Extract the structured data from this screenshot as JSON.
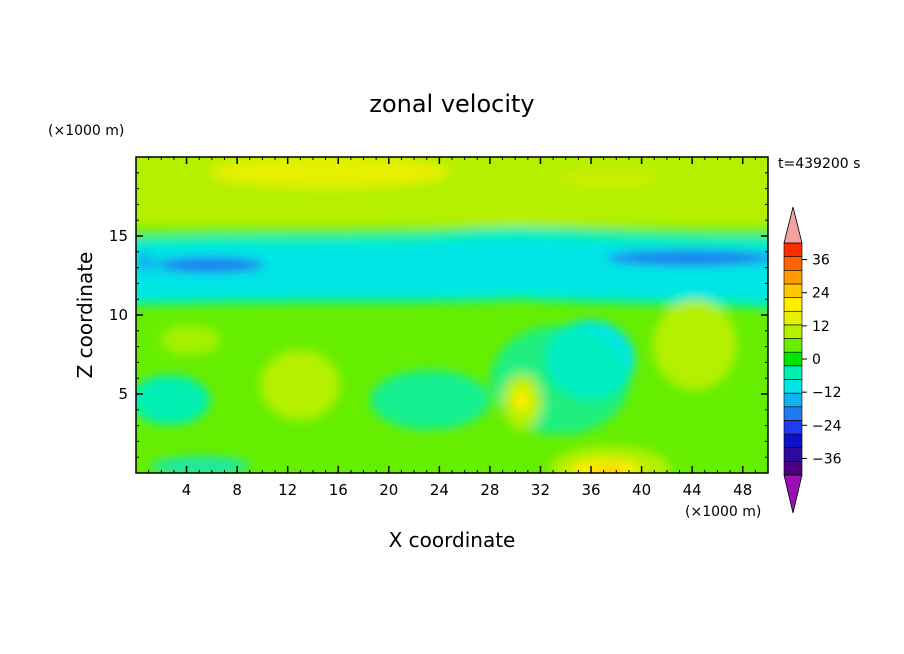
{
  "chart_data": {
    "type": "heatmap",
    "title": "zonal velocity",
    "xlabel": "X coordinate",
    "ylabel": "Z coordinate",
    "x_unit": "(×1000 m)",
    "y_unit": "(×1000 m)",
    "time_label": "t=439200 s",
    "xlim": [
      0,
      50
    ],
    "ylim": [
      0,
      20
    ],
    "x_ticks": [
      "4",
      "8",
      "12",
      "16",
      "20",
      "24",
      "28",
      "32",
      "36",
      "40",
      "44",
      "48"
    ],
    "y_ticks": [
      "5",
      "10",
      "15"
    ],
    "colorbar": {
      "tick_labels": [
        "36",
        "24",
        "12",
        "0",
        "−12",
        "−24",
        "−36"
      ],
      "tick_values": [
        36,
        24,
        12,
        0,
        -12,
        -24,
        -36
      ],
      "range": [
        -42,
        42
      ],
      "interval": 6,
      "colors_low_to_high": [
        "#4b0082",
        "#2b0b9a",
        "#1010c8",
        "#1f3cf0",
        "#1f7cf0",
        "#10b4f0",
        "#00e6e6",
        "#00f0b4",
        "#00e600",
        "#66ee00",
        "#b4f000",
        "#e6f000",
        "#ffee00",
        "#ffc800",
        "#ff9b00",
        "#ff6400",
        "#ff2d00"
      ],
      "under_color": "#9b10b4",
      "over_color": "#f4a0a0"
    },
    "field_regions": [
      {
        "desc": "upper band",
        "z_range": [
          16.5,
          20
        ],
        "value": 6
      },
      {
        "desc": "upper max near top",
        "x": [
          10,
          30
        ],
        "z": [
          18,
          20
        ],
        "value": 9
      },
      {
        "desc": "transition band",
        "z_range": [
          15,
          16
        ],
        "value": 3
      },
      {
        "desc": "negative core layer",
        "z_range": [
          10.5,
          14.5
        ],
        "value": -9
      },
      {
        "desc": "min left",
        "x": [
          0,
          10
        ],
        "z": [
          12.5,
          13.5
        ],
        "value": -15
      },
      {
        "desc": "min right",
        "x": [
          38,
          50
        ],
        "z": [
          13,
          14
        ],
        "value": -15
      },
      {
        "desc": "lower layer",
        "z_range": [
          0,
          10
        ],
        "value": 0
      },
      {
        "desc": "positive lobe 1",
        "x": [
          10,
          16
        ],
        "z": [
          3,
          7
        ],
        "value": 6
      },
      {
        "desc": "positive lobe 2",
        "x": [
          29,
          32
        ],
        "z": [
          3,
          6
        ],
        "value": 9
      },
      {
        "desc": "positive lobe 3",
        "x": [
          41,
          48
        ],
        "z": [
          6,
          10
        ],
        "value": 6
      },
      {
        "desc": "surface max",
        "x": [
          34,
          41
        ],
        "z": [
          0,
          1.5
        ],
        "value": 12
      },
      {
        "desc": "negative pocket",
        "x": [
          33,
          40
        ],
        "z": [
          5,
          9
        ],
        "value": -6
      }
    ]
  }
}
